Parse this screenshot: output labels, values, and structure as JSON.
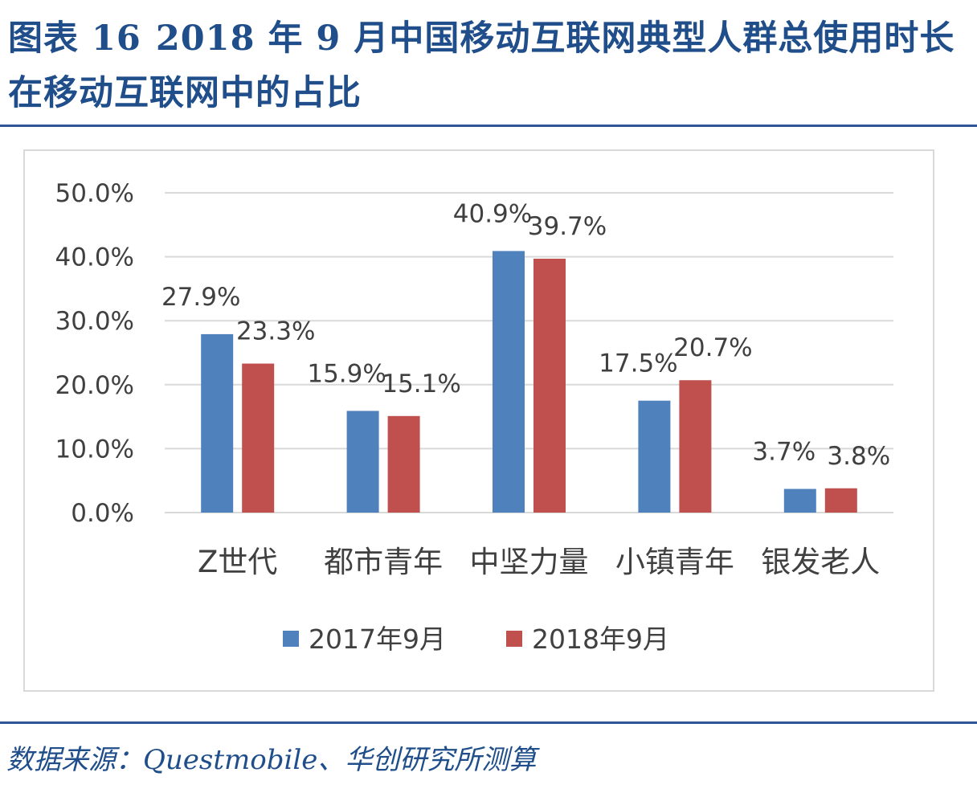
{
  "header": {
    "figure_label": "图表 16",
    "title": "2018 年 9 月中国移动互联网典型人群总使用时长在移动互联网中的占比"
  },
  "footer": {
    "source": "数据来源：Questmobile、华创研究所测算"
  },
  "chart_data": {
    "type": "bar",
    "categories": [
      "Z世代",
      "都市青年",
      "中坚力量",
      "小镇青年",
      "银发老人"
    ],
    "series": [
      {
        "name": "2017年9月",
        "values": [
          27.9,
          15.9,
          40.9,
          17.5,
          3.7
        ],
        "labels": [
          "27.9%",
          "15.9%",
          "40.9%",
          "17.5%",
          "3.7%"
        ],
        "color": "#4f81bd"
      },
      {
        "name": "2018年9月",
        "values": [
          23.3,
          15.1,
          39.7,
          20.7,
          3.8
        ],
        "labels": [
          "23.3%",
          "15.1%",
          "39.7%",
          "20.7%",
          "3.8%"
        ],
        "color": "#c0504d"
      }
    ],
    "yticks": [
      "0.0%",
      "10.0%",
      "20.0%",
      "30.0%",
      "40.0%",
      "50.0%"
    ],
    "ylim": [
      0,
      50
    ],
    "grid": true,
    "legend_position": "bottom",
    "gridline_color": "#d9d9d9",
    "text_color": "#404040"
  }
}
